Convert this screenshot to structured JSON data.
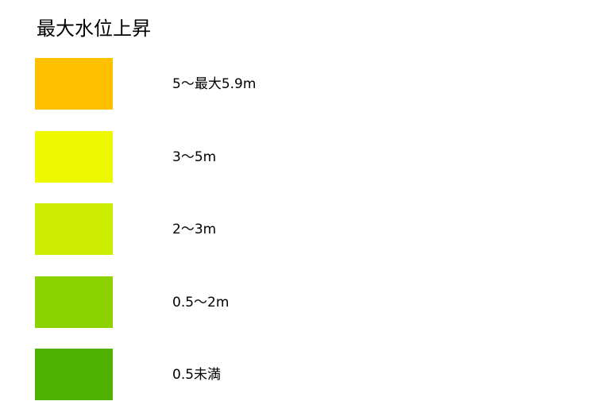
{
  "legend": {
    "title": "最大水位上昇",
    "items": [
      {
        "label": "5〜最大5.9m",
        "color": "#FFC000"
      },
      {
        "label": "3〜5m",
        "color": "#EEF800"
      },
      {
        "label": "2〜3m",
        "color": "#CCEC00"
      },
      {
        "label": "0.5〜2m",
        "color": "#8CD200"
      },
      {
        "label": "0.5未満",
        "color": "#4FB200"
      }
    ]
  }
}
